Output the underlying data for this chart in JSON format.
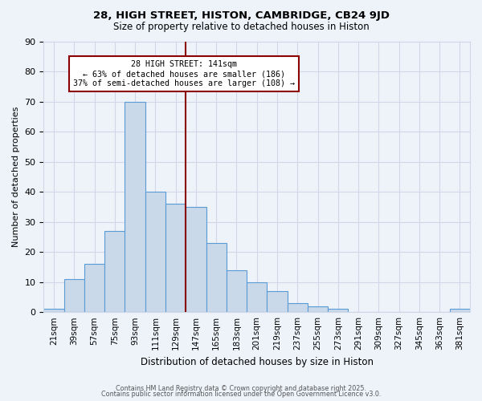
{
  "title1": "28, HIGH STREET, HISTON, CAMBRIDGE, CB24 9JD",
  "title2": "Size of property relative to detached houses in Histon",
  "xlabel": "Distribution of detached houses by size in Histon",
  "ylabel": "Number of detached properties",
  "bar_labels": [
    "21sqm",
    "39sqm",
    "57sqm",
    "75sqm",
    "93sqm",
    "111sqm",
    "129sqm",
    "147sqm",
    "165sqm",
    "183sqm",
    "201sqm",
    "219sqm",
    "237sqm",
    "255sqm",
    "273sqm",
    "291sqm",
    "309sqm",
    "327sqm",
    "345sqm",
    "363sqm",
    "381sqm"
  ],
  "bar_values": [
    1,
    11,
    16,
    27,
    70,
    40,
    36,
    35,
    23,
    14,
    10,
    7,
    3,
    2,
    1,
    0,
    0,
    0,
    0,
    0,
    1
  ],
  "bar_color": "#c9d9ea",
  "bar_edge_color": "#5b9bd5",
  "vline_color": "#8b0000",
  "vline_label_line1": "28 HIGH STREET: 141sqm",
  "vline_label_line2": "← 63% of detached houses are smaller (186)",
  "vline_label_line3": "37% of semi-detached houses are larger (108) →",
  "annotation_box_edge_color": "#8b0000",
  "annotation_box_face_color": "#ffffff",
  "ylim": [
    0,
    90
  ],
  "yticks": [
    0,
    10,
    20,
    30,
    40,
    50,
    60,
    70,
    80,
    90
  ],
  "grid_color": "#d0d8e8",
  "background_color": "#eef3fa",
  "footer1": "Contains HM Land Registry data © Crown copyright and database right 2025.",
  "footer2": "Contains public sector information licensed under the Open Government Licence v3.0."
}
